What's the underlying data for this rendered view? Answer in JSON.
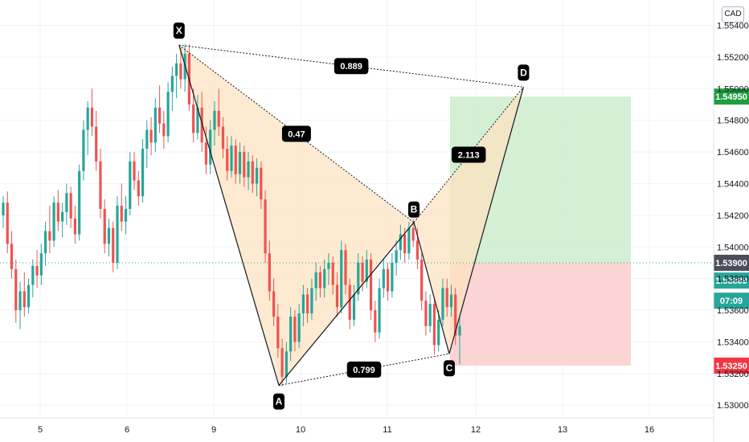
{
  "currency": "CAD",
  "colors": {
    "up": "#26a69a",
    "down": "#ef5350",
    "pattern_fill": "#fde3c2",
    "target_zone": "#cdeccd",
    "stop_zone": "#fbcfcf",
    "target_badge": "#1e9e3e",
    "stop_badge": "#f23645",
    "last_badge": "#26a69a",
    "current_badge": "#4a4e59"
  },
  "chart_data": {
    "type": "candlestick",
    "x_ticks": [
      "5",
      "6",
      "9",
      "10",
      "11",
      "12",
      "13",
      "16"
    ],
    "y_ticks": [
      "1.53000",
      "1.53200",
      "1.53400",
      "1.53600",
      "1.53800",
      "1.54000",
      "1.54200",
      "1.54400",
      "1.54600",
      "1.54800",
      "1.55000",
      "1.55200",
      "1.55400"
    ],
    "ylim": [
      1.5292,
      1.5556
    ],
    "pattern": {
      "points": [
        {
          "label": "X",
          "date": "6.6",
          "price": 1.55275
        },
        {
          "label": "A",
          "date": "9.75",
          "price": 1.53125
        },
        {
          "label": "B",
          "date": "11.3",
          "price": 1.54155
        },
        {
          "label": "C",
          "date": "11.7",
          "price": 1.53325
        },
        {
          "label": "D",
          "date": "12.55",
          "price": 1.5501
        }
      ],
      "ratios": [
        {
          "label": "0.889",
          "from": "X",
          "to": "D"
        },
        {
          "label": "0.47",
          "from": "X",
          "to": "B"
        },
        {
          "label": "0.799",
          "from": "A",
          "to": "C"
        },
        {
          "label": "2.113",
          "from": "B",
          "to": "D"
        }
      ]
    },
    "position": {
      "entry": 1.539,
      "target": 1.5495,
      "stop": 1.5325
    },
    "price_labels": [
      {
        "text": "1.54950",
        "kind": "target"
      },
      {
        "text": "1.53900",
        "kind": "current"
      },
      {
        "text": "1.53889",
        "kind": "last"
      },
      {
        "text": "07:09",
        "kind": "countdown"
      },
      {
        "text": "1.53250",
        "kind": "stop"
      }
    ],
    "last_price": 1.53889,
    "countdown": "07:09",
    "candles": [
      [
        1.542,
        1.5432,
        1.5412,
        1.5428
      ],
      [
        1.5428,
        1.5435,
        1.5396,
        1.5402
      ],
      [
        1.5402,
        1.541,
        1.538,
        1.5386
      ],
      [
        1.5386,
        1.5392,
        1.5352,
        1.536
      ],
      [
        1.536,
        1.5378,
        1.5348,
        1.5372
      ],
      [
        1.5372,
        1.5384,
        1.5356,
        1.5362
      ],
      [
        1.5362,
        1.538,
        1.5358,
        1.5376
      ],
      [
        1.5376,
        1.5392,
        1.5368,
        1.5388
      ],
      [
        1.5388,
        1.5398,
        1.5374,
        1.5382
      ],
      [
        1.5382,
        1.5402,
        1.5376,
        1.5396
      ],
      [
        1.5396,
        1.5416,
        1.5388,
        1.541
      ],
      [
        1.541,
        1.5426,
        1.5396,
        1.5404
      ],
      [
        1.5404,
        1.5432,
        1.54,
        1.5428
      ],
      [
        1.5428,
        1.5436,
        1.541,
        1.5416
      ],
      [
        1.5416,
        1.5428,
        1.5406,
        1.5422
      ],
      [
        1.5422,
        1.544,
        1.5414,
        1.5434
      ],
      [
        1.5434,
        1.5438,
        1.5412,
        1.5418
      ],
      [
        1.5418,
        1.5426,
        1.5402,
        1.5408
      ],
      [
        1.5408,
        1.5452,
        1.5404,
        1.5448
      ],
      [
        1.5448,
        1.548,
        1.5442,
        1.5474
      ],
      [
        1.5474,
        1.5492,
        1.5458,
        1.5488
      ],
      [
        1.5488,
        1.55,
        1.547,
        1.5476
      ],
      [
        1.5476,
        1.5486,
        1.5448,
        1.5454
      ],
      [
        1.5454,
        1.5462,
        1.5418,
        1.5424
      ],
      [
        1.5424,
        1.543,
        1.5396,
        1.5402
      ],
      [
        1.5402,
        1.5418,
        1.5394,
        1.5412
      ],
      [
        1.5412,
        1.5416,
        1.5384,
        1.539
      ],
      [
        1.539,
        1.5432,
        1.5386,
        1.5426
      ],
      [
        1.5426,
        1.544,
        1.541,
        1.5416
      ],
      [
        1.5416,
        1.5432,
        1.5408,
        1.5424
      ],
      [
        1.5424,
        1.546,
        1.542,
        1.5454
      ],
      [
        1.5454,
        1.546,
        1.5436,
        1.5442
      ],
      [
        1.5442,
        1.5448,
        1.5426,
        1.5432
      ],
      [
        1.5432,
        1.5468,
        1.5428,
        1.5462
      ],
      [
        1.5462,
        1.548,
        1.545,
        1.5474
      ],
      [
        1.5474,
        1.5482,
        1.5458,
        1.5466
      ],
      [
        1.5466,
        1.5494,
        1.546,
        1.5488
      ],
      [
        1.5488,
        1.5502,
        1.5472,
        1.5478
      ],
      [
        1.5478,
        1.5486,
        1.5462,
        1.547
      ],
      [
        1.547,
        1.5504,
        1.5466,
        1.5498
      ],
      [
        1.5498,
        1.5514,
        1.5486,
        1.5508
      ],
      [
        1.5508,
        1.5522,
        1.5494,
        1.5516
      ],
      [
        1.5516,
        1.5526,
        1.55,
        1.5506
      ],
      [
        1.5506,
        1.5528,
        1.5498,
        1.5522
      ],
      [
        1.5522,
        1.5528,
        1.5486,
        1.549
      ],
      [
        1.549,
        1.55,
        1.5466,
        1.5472
      ],
      [
        1.5472,
        1.5496,
        1.5468,
        1.5488
      ],
      [
        1.5488,
        1.5498,
        1.546,
        1.5466
      ],
      [
        1.5466,
        1.5476,
        1.5446,
        1.5452
      ],
      [
        1.5452,
        1.548,
        1.5446,
        1.5474
      ],
      [
        1.5474,
        1.5492,
        1.5464,
        1.5486
      ],
      [
        1.5486,
        1.55,
        1.547,
        1.5476
      ],
      [
        1.5476,
        1.5482,
        1.5456,
        1.5462
      ],
      [
        1.5462,
        1.547,
        1.5442,
        1.5448
      ],
      [
        1.5448,
        1.547,
        1.5444,
        1.5464
      ],
      [
        1.5464,
        1.5468,
        1.544,
        1.5446
      ],
      [
        1.5446,
        1.5466,
        1.544,
        1.546
      ],
      [
        1.546,
        1.5464,
        1.5438,
        1.5444
      ],
      [
        1.5444,
        1.546,
        1.5436,
        1.5454
      ],
      [
        1.5454,
        1.5458,
        1.5434,
        1.544
      ],
      [
        1.544,
        1.5456,
        1.5432,
        1.545
      ],
      [
        1.545,
        1.5454,
        1.5424,
        1.543
      ],
      [
        1.543,
        1.5436,
        1.539,
        1.5396
      ],
      [
        1.5396,
        1.5404,
        1.5366,
        1.5372
      ],
      [
        1.5372,
        1.538,
        1.535,
        1.5356
      ],
      [
        1.5356,
        1.5364,
        1.533,
        1.5336
      ],
      [
        1.5336,
        1.5342,
        1.5312,
        1.5318
      ],
      [
        1.5318,
        1.534,
        1.5314,
        1.5334
      ],
      [
        1.5334,
        1.5362,
        1.5328,
        1.5356
      ],
      [
        1.5356,
        1.536,
        1.5334,
        1.534
      ],
      [
        1.534,
        1.5364,
        1.5336,
        1.5358
      ],
      [
        1.5358,
        1.5376,
        1.535,
        1.537
      ],
      [
        1.537,
        1.5374,
        1.5352,
        1.5358
      ],
      [
        1.5358,
        1.538,
        1.5354,
        1.5374
      ],
      [
        1.5374,
        1.539,
        1.5366,
        1.5384
      ],
      [
        1.5384,
        1.5388,
        1.5368,
        1.5374
      ],
      [
        1.5374,
        1.5392,
        1.5368,
        1.5386
      ],
      [
        1.5386,
        1.5396,
        1.5376,
        1.539
      ],
      [
        1.539,
        1.5394,
        1.537,
        1.5376
      ],
      [
        1.5376,
        1.5384,
        1.5356,
        1.5362
      ],
      [
        1.5362,
        1.5404,
        1.5358,
        1.5398
      ],
      [
        1.5398,
        1.5402,
        1.537,
        1.5376
      ],
      [
        1.5376,
        1.538,
        1.5348,
        1.5354
      ],
      [
        1.5354,
        1.5376,
        1.535,
        1.537
      ],
      [
        1.537,
        1.5396,
        1.5366,
        1.539
      ],
      [
        1.539,
        1.5394,
        1.5372,
        1.5378
      ],
      [
        1.5378,
        1.5398,
        1.5374,
        1.5392
      ],
      [
        1.5392,
        1.5396,
        1.5354,
        1.536
      ],
      [
        1.536,
        1.5366,
        1.534,
        1.5346
      ],
      [
        1.5346,
        1.538,
        1.5342,
        1.5374
      ],
      [
        1.5374,
        1.5392,
        1.5368,
        1.5386
      ],
      [
        1.5386,
        1.539,
        1.5366,
        1.5372
      ],
      [
        1.5372,
        1.5396,
        1.5368,
        1.539
      ],
      [
        1.539,
        1.5404,
        1.5382,
        1.5398
      ],
      [
        1.5398,
        1.5414,
        1.5392,
        1.5408
      ],
      [
        1.5408,
        1.5412,
        1.539,
        1.5396
      ],
      [
        1.5396,
        1.5416,
        1.5392,
        1.5412
      ],
      [
        1.5412,
        1.5418,
        1.54,
        1.5404
      ],
      [
        1.5404,
        1.5412,
        1.5386,
        1.5392
      ],
      [
        1.5392,
        1.5396,
        1.536,
        1.5366
      ],
      [
        1.5366,
        1.5372,
        1.5344,
        1.535
      ],
      [
        1.535,
        1.537,
        1.5346,
        1.5364
      ],
      [
        1.5364,
        1.5368,
        1.5332,
        1.5338
      ],
      [
        1.5338,
        1.536,
        1.5334,
        1.5354
      ],
      [
        1.5354,
        1.538,
        1.535,
        1.5374
      ],
      [
        1.5374,
        1.538,
        1.5356,
        1.5362
      ],
      [
        1.5362,
        1.5376,
        1.5356,
        1.537
      ],
      [
        1.537,
        1.5374,
        1.5338,
        1.5344
      ],
      [
        1.5344,
        1.5356,
        1.5326,
        1.535
      ]
    ]
  }
}
